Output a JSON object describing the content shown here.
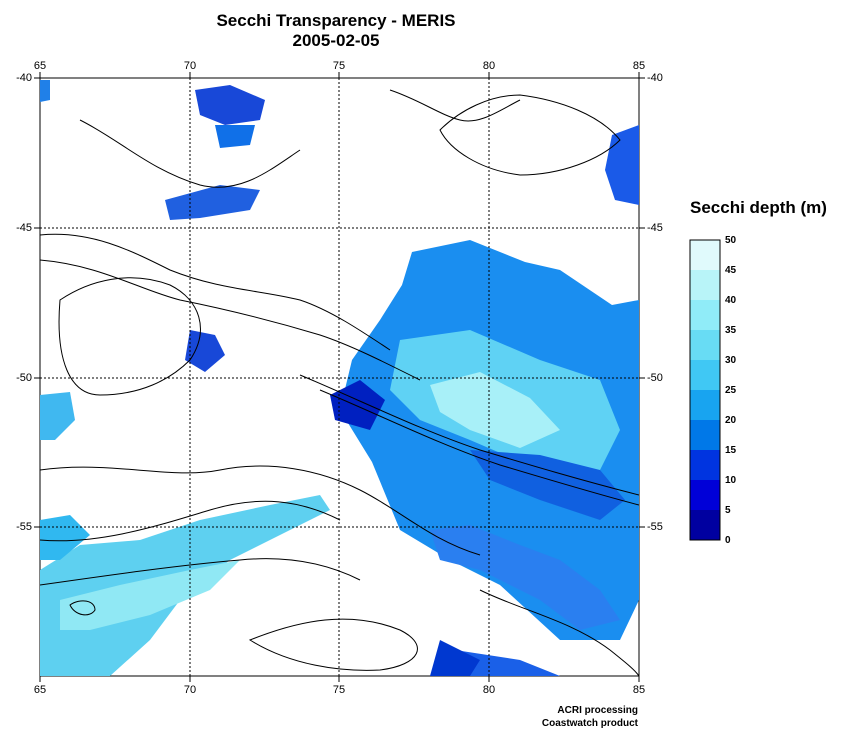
{
  "title": {
    "line1": "Secchi Transparency - MERIS",
    "line2": "2005-02-05"
  },
  "axes": {
    "lon_ticks": [
      "65",
      "70",
      "75",
      "80",
      "85"
    ],
    "lat_ticks": [
      "-40",
      "-45",
      "-50",
      "-55"
    ],
    "lon_range": [
      65,
      85
    ],
    "lat_range": [
      -60,
      -40
    ],
    "grid": true
  },
  "colorbar": {
    "title": "Secchi depth (m)",
    "ticks": [
      "50",
      "45",
      "40",
      "35",
      "30",
      "25",
      "20",
      "15",
      "10",
      "5",
      "0"
    ],
    "colors": [
      "#0000a0",
      "#0000d8",
      "#0034e0",
      "#0078e8",
      "#18a4f0",
      "#40c8f4",
      "#68dcf4",
      "#90ecf8",
      "#b8f4f8",
      "#e0fafc"
    ]
  },
  "credits": {
    "line1": "ACRI processing",
    "line2": "Coastwatch product"
  }
}
